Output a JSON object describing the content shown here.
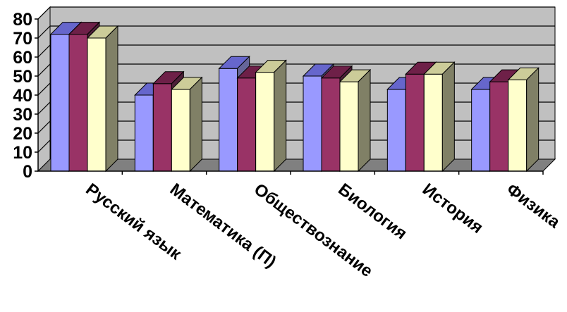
{
  "chart_data": {
    "type": "bar",
    "categories": [
      "Русский язык",
      "Математика (П)",
      "Обществознание",
      "Биология",
      "История",
      "Физика"
    ],
    "series": [
      {
        "values": [
          72,
          40,
          54,
          50,
          43,
          43
        ]
      },
      {
        "values": [
          72,
          46,
          49,
          49,
          51,
          47
        ]
      },
      {
        "values": [
          70,
          43,
          52,
          47,
          51,
          48
        ]
      }
    ],
    "y_ticks": [
      "0",
      "10",
      "20",
      "30",
      "40",
      "50",
      "60",
      "70",
      "80"
    ],
    "ylim": [
      0,
      80
    ],
    "grid": true,
    "legend": "none",
    "title": "",
    "xlabel": "",
    "ylabel": "",
    "colors": {
      "series": [
        "#9999FF",
        "#993366",
        "#FFFFCC"
      ],
      "series_top": [
        "#6666CC",
        "#6E2048",
        "#CCCC99"
      ],
      "series_side": [
        "#666699",
        "#4D1F38",
        "#808066"
      ],
      "wall": "#C0C0C0",
      "floor": "#808080",
      "gridline": "#000000"
    }
  }
}
